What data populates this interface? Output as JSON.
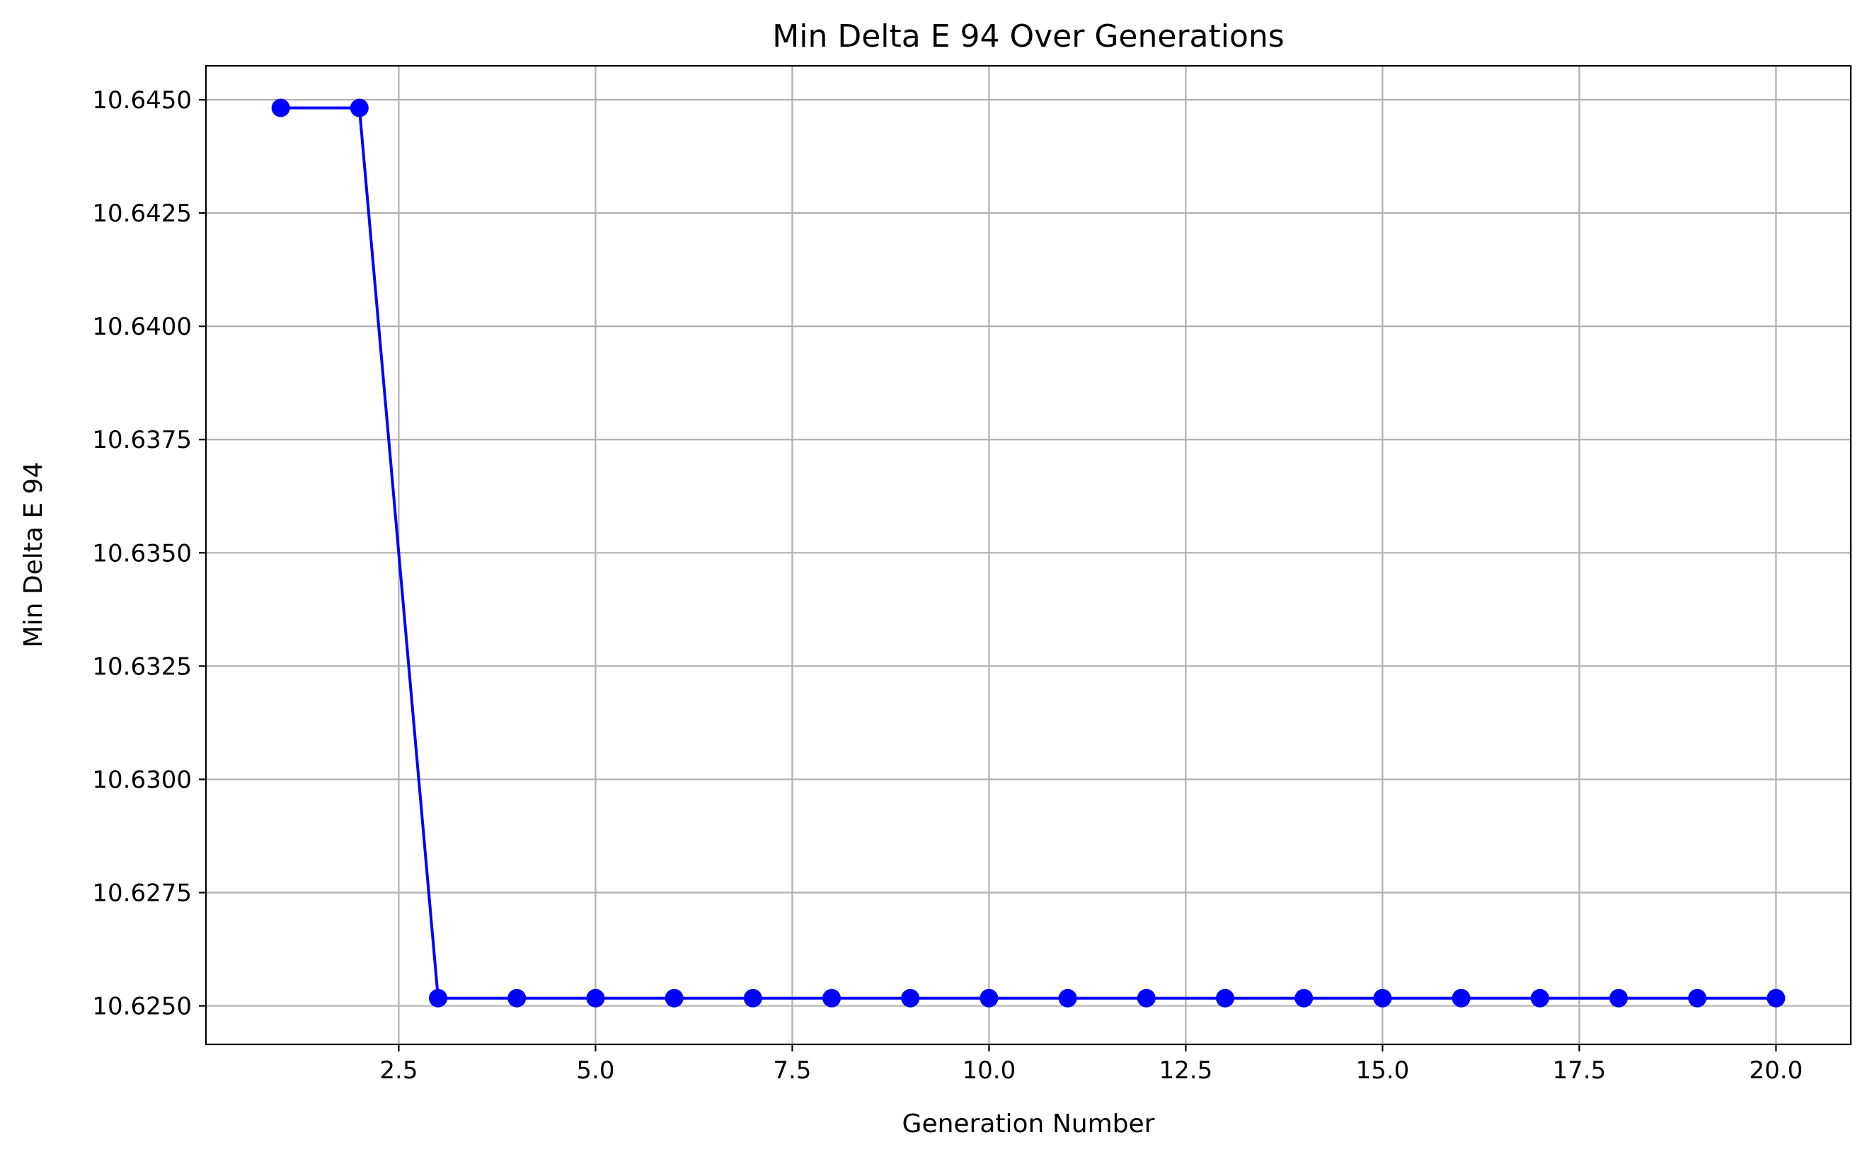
{
  "chart_data": {
    "type": "line",
    "title": "Min Delta E 94 Over Generations",
    "xlabel": "Generation Number",
    "ylabel": "Min Delta E 94",
    "xlim": [
      0.05,
      20.95
    ],
    "ylim": [
      10.62415,
      10.64575
    ],
    "x_ticks": [
      2.5,
      5.0,
      7.5,
      10.0,
      12.5,
      15.0,
      17.5,
      20.0
    ],
    "x_tick_labels": [
      "2.5",
      "5.0",
      "7.5",
      "10.0",
      "12.5",
      "15.0",
      "17.5",
      "20.0"
    ],
    "y_ticks": [
      10.625,
      10.6275,
      10.63,
      10.6325,
      10.635,
      10.6375,
      10.64,
      10.6425,
      10.645
    ],
    "y_tick_labels": [
      "10.6250",
      "10.6275",
      "10.6300",
      "10.6325",
      "10.6350",
      "10.6375",
      "10.6400",
      "10.6425",
      "10.6450"
    ],
    "grid": true,
    "series": [
      {
        "color": "#0000ff",
        "marker": "circle",
        "x": [
          1,
          2,
          3,
          4,
          5,
          6,
          7,
          8,
          9,
          10,
          11,
          12,
          13,
          14,
          15,
          16,
          17,
          18,
          19,
          20
        ],
        "y": [
          10.64482,
          10.64482,
          10.62517,
          10.62517,
          10.62517,
          10.62517,
          10.62517,
          10.62517,
          10.62517,
          10.62517,
          10.62517,
          10.62517,
          10.62517,
          10.62517,
          10.62517,
          10.62517,
          10.62517,
          10.62517,
          10.62517,
          10.62517
        ]
      }
    ]
  }
}
